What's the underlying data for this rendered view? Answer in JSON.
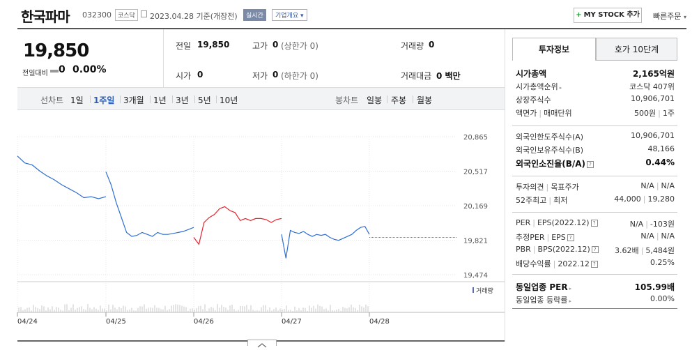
{
  "header": {
    "company_name": "한국파마",
    "code": "032300",
    "market_badge": "코스닥",
    "date_label": "2023.04.28 기준(개장전)",
    "live_badge": "실시간",
    "overview_label": "기업개요",
    "overview_arrow": "▾",
    "mystock_plus": "+",
    "mystock_label": "MY STOCK 추가",
    "quick_order_label": "빠른주문",
    "quick_order_arrow": "▾"
  },
  "price": {
    "current": "19,850",
    "change_label": "전일대비",
    "change_value": "0",
    "change_pct": "0.00%"
  },
  "stats": {
    "prev_label": "전일",
    "prev_value": "19,850",
    "high_label": "고가",
    "high_value": "0",
    "high_sub": "(상한가 0)",
    "volume_label": "거래량",
    "volume_value": "0",
    "open_label": "시가",
    "open_value": "0",
    "low_label": "저가",
    "low_value": "0",
    "low_sub": "(하한가 0)",
    "amount_label": "거래대금",
    "amount_value": "0 백만"
  },
  "periods": {
    "line_label": "선차트",
    "line_items": [
      "1일",
      "1주일",
      "3개월",
      "1년",
      "3년",
      "5년",
      "10년"
    ],
    "active_index": 1,
    "candle_label": "봉차트",
    "candle_items": [
      "일봉",
      "주봉",
      "월봉"
    ]
  },
  "chart_data": {
    "type": "line",
    "y_ticks": [
      "20,865",
      "20,517",
      "20,169",
      "19,821",
      "19,474"
    ],
    "ylim": [
      19474,
      20865
    ],
    "x_ticks": [
      "04/24",
      "04/25",
      "04/26",
      "04/27",
      "04/28"
    ],
    "reference_value": 19850,
    "volume_label": "거래량",
    "colors": {
      "default": "#2f6ed1",
      "up": "#e3232e",
      "flat": "#555555"
    },
    "series": [
      {
        "segment": "04/24",
        "color_key": "default",
        "values": [
          20670,
          20600,
          20580,
          20520,
          20470,
          20430,
          20380,
          20340,
          20300,
          20250,
          20260,
          20240,
          20260
        ]
      },
      {
        "segment": "04/25",
        "color_key": "default",
        "values": [
          20510,
          20380,
          20200,
          20050,
          19900,
          19860,
          19870,
          19900,
          19880,
          19860,
          19900,
          19880,
          19880,
          19890,
          19900,
          19910,
          19930,
          19950
        ]
      },
      {
        "segment": "04/26",
        "color_key": "up",
        "values": [
          19850,
          19780,
          20000,
          20050,
          20080,
          20140,
          20160,
          20120,
          20100,
          20020,
          20040,
          20020,
          20040,
          20040,
          20030,
          20000,
          20030,
          20040
        ]
      },
      {
        "segment": "04/27",
        "color_key": "default",
        "values": [
          19880,
          19640,
          19920,
          19900,
          19890,
          19910,
          19880,
          19860,
          19880,
          19870,
          19880,
          19850,
          19830,
          19820,
          19840,
          19860,
          19880,
          19920,
          19950,
          19960,
          19880
        ]
      }
    ]
  },
  "invest_panel": {
    "tab_invest": "투자정보",
    "tab_hoga": "호가 10단계",
    "rows_a": [
      {
        "label": "시가총액",
        "value": "2,165억원",
        "bold": true
      },
      {
        "label": "시가총액순위",
        "value": "코스닥 407위",
        "arrow": "▸"
      },
      {
        "label": "상장주식수",
        "value": "10,906,701"
      },
      {
        "label": "액면가",
        "label2": "매매단위",
        "value": "500원",
        "value2": "1주"
      }
    ],
    "rows_b": [
      {
        "label": "외국인한도주식수(A)",
        "value": "10,906,701"
      },
      {
        "label": "외국인보유주식수(B)",
        "value": "48,166"
      },
      {
        "label": "외국인소진율(B/A)",
        "value": "0.44%",
        "bold": true,
        "help": "?"
      }
    ],
    "rows_c": [
      {
        "label": "투자의견",
        "label2": "목표주가",
        "value": "N/A",
        "value2": "N/A"
      },
      {
        "label": "52주최고",
        "label2": "최저",
        "value": "44,000",
        "value2": "19,280"
      }
    ],
    "rows_d": [
      {
        "label": "PER",
        "label2": "EPS(2022.12)",
        "value": "N/A",
        "value2": "-103원",
        "help": "?"
      },
      {
        "label": "추정PER",
        "label2": "EPS",
        "value": "N/A",
        "value2": "N/A",
        "help": "?"
      },
      {
        "label": "PBR",
        "label2": "BPS(2022.12)",
        "value": "3.62배",
        "value2": "5,484원",
        "help": "?"
      },
      {
        "label": "배당수익률",
        "label2": "2022.12",
        "value": "0.25%",
        "help": "?"
      }
    ],
    "rows_e": [
      {
        "label": "동일업종 PER",
        "value": "105.99배",
        "bold": true,
        "arrow": "▸"
      },
      {
        "label": "동일업종 등락률",
        "value": "0.00%",
        "arrow": "▸"
      }
    ]
  }
}
